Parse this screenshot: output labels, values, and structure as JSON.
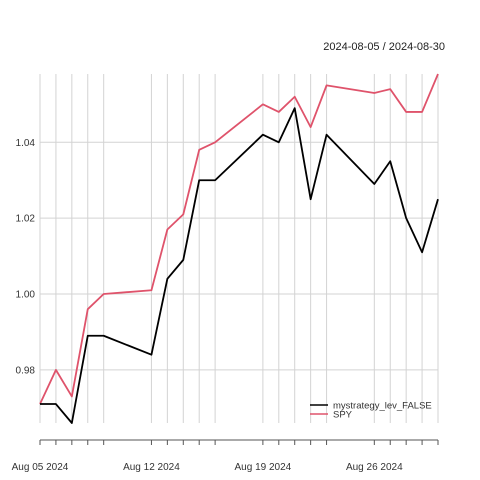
{
  "chart_data": {
    "type": "line",
    "date_range_label": "2024-08-05 / 2024-08-30",
    "x": [
      "2024-08-05",
      "2024-08-06",
      "2024-08-07",
      "2024-08-08",
      "2024-08-09",
      "2024-08-12",
      "2024-08-13",
      "2024-08-14",
      "2024-08-15",
      "2024-08-16",
      "2024-08-19",
      "2024-08-20",
      "2024-08-21",
      "2024-08-22",
      "2024-08-23",
      "2024-08-26",
      "2024-08-27",
      "2024-08-28",
      "2024-08-29",
      "2024-08-30"
    ],
    "x_range": [
      "2024-08-05",
      "2024-08-30"
    ],
    "series": [
      {
        "name": "mystrategy_lev_FALSE",
        "color": "#000000",
        "values": [
          0.971,
          0.971,
          0.966,
          0.989,
          0.989,
          0.984,
          1.004,
          1.009,
          1.03,
          1.03,
          1.042,
          1.04,
          1.049,
          1.025,
          1.042,
          1.029,
          1.035,
          1.02,
          1.011,
          1.025
        ]
      },
      {
        "name": "SPY",
        "color": "#df536b",
        "values": [
          0.971,
          0.98,
          0.973,
          0.996,
          1.0,
          1.001,
          1.017,
          1.021,
          1.038,
          1.04,
          1.05,
          1.048,
          1.052,
          1.044,
          1.055,
          1.053,
          1.054,
          1.048,
          1.048,
          1.058
        ]
      }
    ],
    "ylim": [
      0.966,
      1.058
    ],
    "y_ticks": [
      0.98,
      1.0,
      1.02,
      1.04
    ],
    "y_tick_labels": [
      "0.98",
      "1.00",
      "1.02",
      "1.04"
    ],
    "x_tick_labels": [
      {
        "date": "2024-08-05",
        "label": "Aug 05 2024"
      },
      {
        "date": "2024-08-12",
        "label": "Aug 12 2024"
      },
      {
        "date": "2024-08-19",
        "label": "Aug 19 2024"
      },
      {
        "date": "2024-08-26",
        "label": "Aug 26 2024"
      }
    ],
    "grid": true,
    "legend_position": "bottom-right"
  }
}
